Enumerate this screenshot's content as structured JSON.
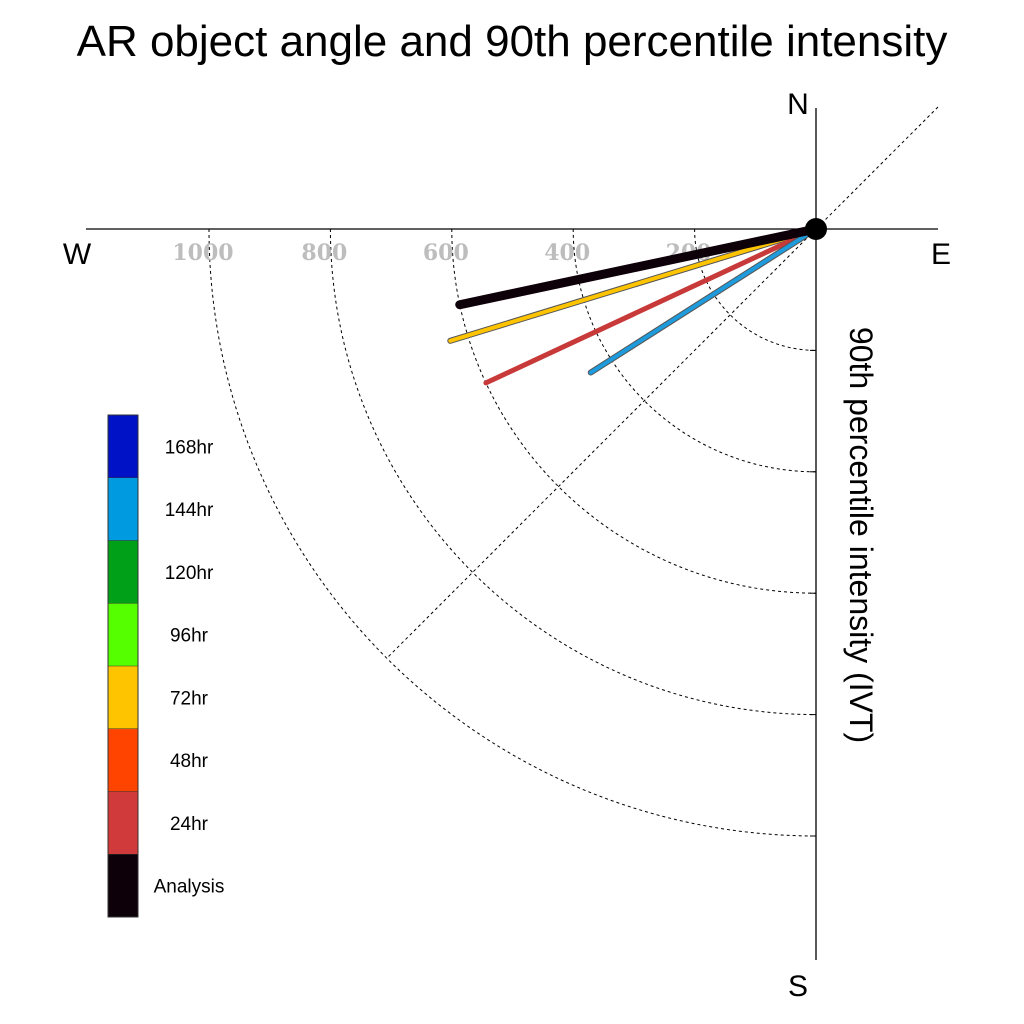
{
  "chart_data": {
    "type": "polar-vector",
    "title": "AR object angle and 90th percentile intensity",
    "ylabel": "90th percentile intensity (IVT)",
    "compass": {
      "north": "N",
      "south": "S",
      "east": "E",
      "west": "W"
    },
    "radial_ticks": [
      200,
      400,
      600,
      800,
      1000
    ],
    "radial_tick_labels": [
      "200",
      "400",
      "600",
      "800",
      "1000"
    ],
    "radial_range": [
      0,
      1180
    ],
    "diagonals": [
      "NE-SW"
    ],
    "series": [
      {
        "name": "72hr",
        "angle_deg_below_west": 17.0,
        "intensity": 630,
        "color": "#ffc400",
        "outline": "#555555",
        "width": 4
      },
      {
        "name": "24hr",
        "angle_deg_below_west": 25.0,
        "intensity": 600,
        "color": "#c83a3a",
        "outline": null,
        "width": 5
      },
      {
        "name": "144hr",
        "angle_deg_below_west": 32.5,
        "intensity": 440,
        "color": "#1e9bdc",
        "outline": "#555555",
        "width": 4
      },
      {
        "name": "Analysis",
        "angle_deg_below_west": 12.0,
        "intensity": 600,
        "color": "#0e0008",
        "outline": null,
        "width": 9
      }
    ],
    "legend": [
      {
        "label": "168hr",
        "color": "#0012c6"
      },
      {
        "label": "144hr",
        "color": "#009ae0"
      },
      {
        "label": "120hr",
        "color": "#00a018"
      },
      {
        "label": "96hr",
        "color": "#55ff00"
      },
      {
        "label": "72hr",
        "color": "#ffc400"
      },
      {
        "label": "48hr",
        "color": "#ff4400"
      },
      {
        "label": "24hr",
        "color": "#d03a3a"
      },
      {
        "label": "Analysis",
        "color": "#0e0008"
      }
    ]
  }
}
